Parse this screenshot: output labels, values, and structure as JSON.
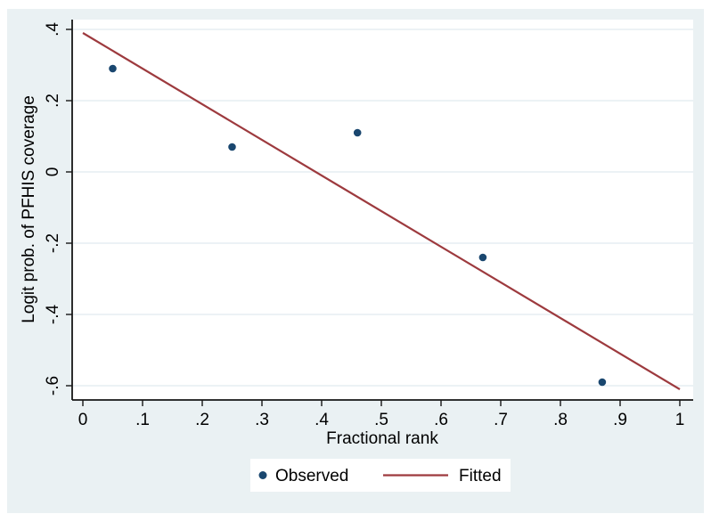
{
  "figure": {
    "page_bg": "#ffffff",
    "region_bg": "#eaf1f3",
    "plot_bg": "#ffffff",
    "grid_color": "#e0ebef",
    "axis_color": "#161616",
    "text_color": "#000000",
    "legend_bg": "#ffffff",
    "legend_border": "#4a4a4a"
  },
  "chart_data": {
    "type": "scatter",
    "title": "",
    "xlabel": "Fractional rank",
    "ylabel": "Logit prob. of PFHIS coverage",
    "xlim": [
      -0.02,
      1.02
    ],
    "ylim": [
      -0.64,
      0.43
    ],
    "grid": "horizontal-only",
    "legend_position": "bottom-center",
    "x_ticks": {
      "values": [
        0,
        0.1,
        0.2,
        0.3,
        0.4,
        0.5,
        0.6,
        0.7,
        0.8,
        0.9,
        1
      ],
      "labels": [
        "0",
        ".1",
        ".2",
        ".3",
        ".4",
        ".5",
        ".6",
        ".7",
        ".8",
        ".9",
        "1"
      ]
    },
    "y_ticks": {
      "values": [
        -0.6,
        -0.4,
        -0.2,
        0,
        0.2,
        0.4
      ],
      "labels": [
        "-.6",
        "-.4",
        "-.2",
        "0",
        ".2",
        ".4"
      ]
    },
    "series": [
      {
        "name": "Observed",
        "type": "scatter",
        "marker": "circle",
        "color": "#1a476f",
        "points": [
          [
            0.05,
            0.29
          ],
          [
            0.25,
            0.07
          ],
          [
            0.46,
            0.11
          ],
          [
            0.67,
            -0.24
          ],
          [
            0.87,
            -0.59
          ]
        ]
      },
      {
        "name": "Fitted",
        "type": "line",
        "color": "#9d3a3e",
        "points": [
          [
            0,
            0.39
          ],
          [
            1,
            -0.61
          ]
        ]
      }
    ]
  }
}
